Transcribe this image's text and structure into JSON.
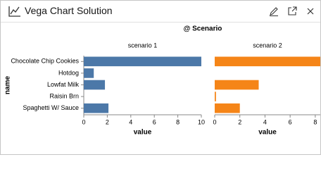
{
  "window": {
    "title": "Vega Chart Solution"
  },
  "facet": {
    "title": "@ Scenario",
    "y_label": "name"
  },
  "chart_data": [
    {
      "type": "bar",
      "title": "scenario 1",
      "x_label": "value",
      "color": "#4c78a8",
      "categories": [
        "Chocolate Chip Cookies",
        "Hotdog",
        "Lowfat Milk",
        "Raisin Brn",
        "Spaghetti W/ Sauce"
      ],
      "values": [
        10,
        0.85,
        1.8,
        0,
        2.1
      ],
      "xlim": [
        0,
        10
      ],
      "xticks": [
        0,
        2,
        4,
        6,
        8,
        10
      ]
    },
    {
      "type": "bar",
      "title": "scenario 2",
      "x_label": "value",
      "color": "#f58518",
      "values": [
        8.4,
        0,
        3.5,
        0.1,
        2
      ],
      "xlim": [
        0,
        8.4
      ],
      "xticks": [
        0,
        2,
        4,
        6,
        8
      ]
    }
  ]
}
